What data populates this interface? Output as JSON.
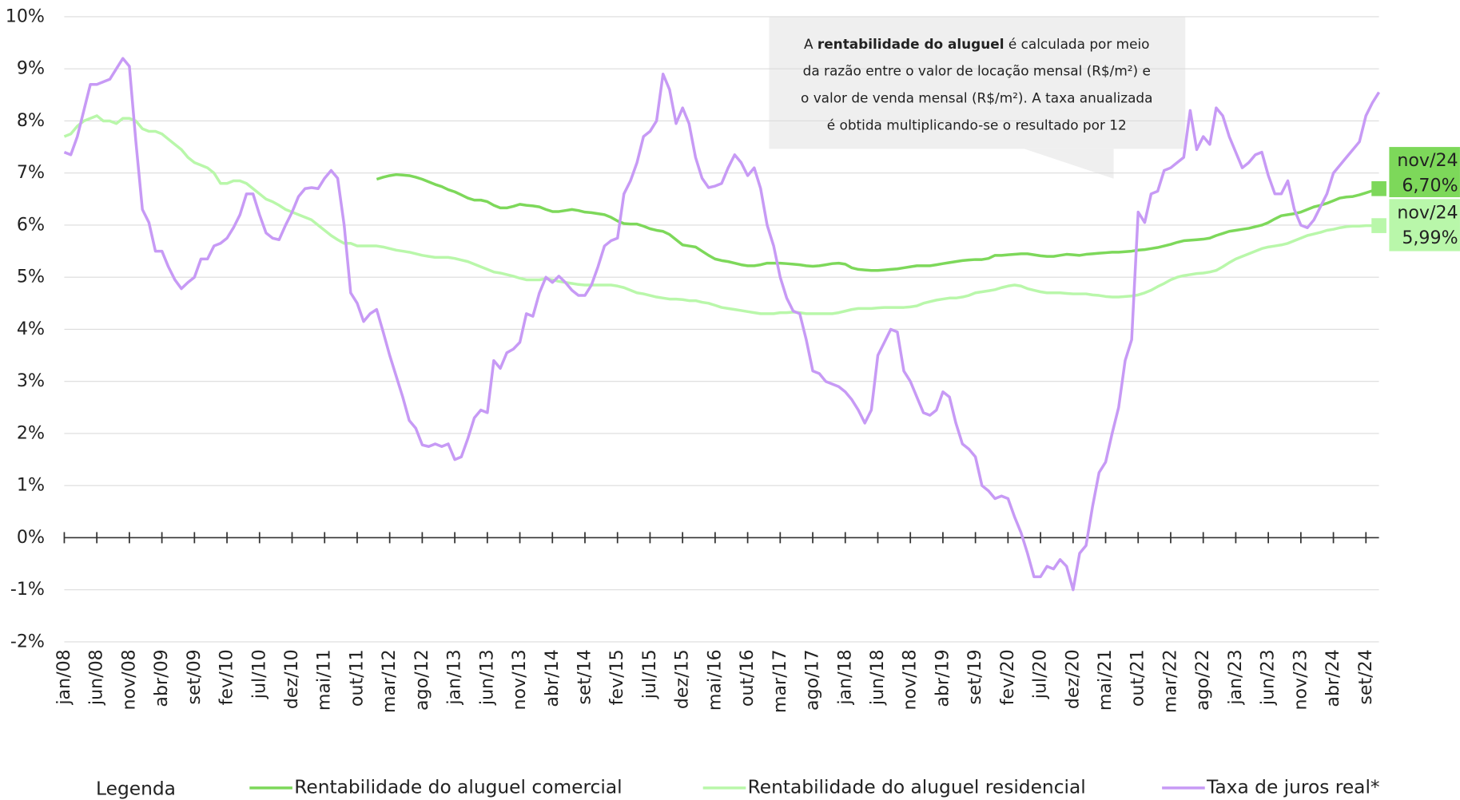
{
  "chart_data": {
    "type": "line",
    "ylim": [
      -2,
      10
    ],
    "yticks": [
      {
        "value": -2,
        "label": "-2%"
      },
      {
        "value": -1,
        "label": "-1%"
      },
      {
        "value": 0,
        "label": "0%"
      },
      {
        "value": 1,
        "label": "1%"
      },
      {
        "value": 2,
        "label": "2%"
      },
      {
        "value": 3,
        "label": "3%"
      },
      {
        "value": 4,
        "label": "4%"
      },
      {
        "value": 5,
        "label": "5%"
      },
      {
        "value": 6,
        "label": "6%"
      },
      {
        "value": 7,
        "label": "7%"
      },
      {
        "value": 8,
        "label": "8%"
      },
      {
        "value": 9,
        "label": "9%"
      },
      {
        "value": 10,
        "label": "10%"
      }
    ],
    "grid": true,
    "legend_title": "Legenda",
    "annotation": {
      "lines": [
        [
          "A ",
          "rentabilidade do aluguel",
          " é calculada por meio"
        ],
        [
          "da razão entre o valor de locação mensal (R$/m²) e"
        ],
        [
          "o valor de venda mensal (R$/m²).  A taxa anualizada"
        ],
        [
          "é obtida multiplicando-se  o resultado por 12"
        ]
      ]
    },
    "categories": [
      "jan/08",
      null,
      null,
      null,
      null,
      "jun/08",
      null,
      null,
      null,
      null,
      "nov/08",
      null,
      null,
      null,
      null,
      "abr/09",
      null,
      null,
      null,
      null,
      "set/09",
      null,
      null,
      null,
      null,
      "fev/10",
      null,
      null,
      null,
      null,
      "jul/10",
      null,
      null,
      null,
      null,
      "dez/10",
      null,
      null,
      null,
      null,
      "mai/11",
      null,
      null,
      null,
      null,
      "out/11",
      null,
      null,
      null,
      null,
      "mar/12",
      null,
      null,
      null,
      null,
      "ago/12",
      null,
      null,
      null,
      null,
      "jan/13",
      null,
      null,
      null,
      null,
      "jun/13",
      null,
      null,
      null,
      null,
      "nov/13",
      null,
      null,
      null,
      null,
      "abr/14",
      null,
      null,
      null,
      null,
      "set/14",
      null,
      null,
      null,
      null,
      "fev/15",
      null,
      null,
      null,
      null,
      "jul/15",
      null,
      null,
      null,
      null,
      "dez/15",
      null,
      null,
      null,
      null,
      "mai/16",
      null,
      null,
      null,
      null,
      "out/16",
      null,
      null,
      null,
      null,
      "mar/17",
      null,
      null,
      null,
      null,
      "ago/17",
      null,
      null,
      null,
      null,
      "jan/18",
      null,
      null,
      null,
      null,
      "jun/18",
      null,
      null,
      null,
      null,
      "nov/18",
      null,
      null,
      null,
      null,
      "abr/19",
      null,
      null,
      null,
      null,
      "set/19",
      null,
      null,
      null,
      null,
      "fev/20",
      null,
      null,
      null,
      null,
      "jul/20",
      null,
      null,
      null,
      null,
      "dez/20",
      null,
      null,
      null,
      null,
      "mai/21",
      null,
      null,
      null,
      null,
      "out/21",
      null,
      null,
      null,
      null,
      "mar/22",
      null,
      null,
      null,
      null,
      "ago/22",
      null,
      null,
      null,
      null,
      "jan/23",
      null,
      null,
      null,
      null,
      "jun/23",
      null,
      null,
      null,
      null,
      "nov/23",
      null,
      null,
      null,
      null,
      "abr/24",
      null,
      null,
      null,
      null,
      "set/24",
      null,
      null
    ],
    "series": [
      {
        "name": "Rentabilidade do aluguel comercial",
        "color": "#7dd85a",
        "last_label": [
          "nov/24",
          "6,70%"
        ],
        "values": [
          null,
          null,
          null,
          null,
          null,
          null,
          null,
          null,
          null,
          null,
          null,
          null,
          null,
          null,
          null,
          null,
          null,
          null,
          null,
          null,
          null,
          null,
          null,
          null,
          null,
          null,
          null,
          null,
          null,
          null,
          null,
          null,
          null,
          null,
          null,
          null,
          null,
          null,
          null,
          null,
          null,
          null,
          null,
          null,
          null,
          null,
          null,
          null,
          6.88,
          6.92,
          6.95,
          6.97,
          6.96,
          6.95,
          6.92,
          6.88,
          6.83,
          6.78,
          6.74,
          6.68,
          6.64,
          6.58,
          6.52,
          6.48,
          6.48,
          6.45,
          6.38,
          6.33,
          6.33,
          6.36,
          6.4,
          6.38,
          6.37,
          6.35,
          6.3,
          6.26,
          6.26,
          6.28,
          6.3,
          6.28,
          6.25,
          6.24,
          6.22,
          6.2,
          6.15,
          6.08,
          6.03,
          6.02,
          6.02,
          5.98,
          5.93,
          5.9,
          5.88,
          5.82,
          5.72,
          5.62,
          5.6,
          5.58,
          5.5,
          5.42,
          5.35,
          5.32,
          5.3,
          5.27,
          5.24,
          5.22,
          5.22,
          5.24,
          5.27,
          5.27,
          5.27,
          5.26,
          5.25,
          5.24,
          5.22,
          5.21,
          5.22,
          5.24,
          5.26,
          5.27,
          5.25,
          5.18,
          5.15,
          5.14,
          5.13,
          5.13,
          5.14,
          5.15,
          5.16,
          5.18,
          5.2,
          5.22,
          5.22,
          5.22,
          5.24,
          5.26,
          5.28,
          5.3,
          5.32,
          5.33,
          5.34,
          5.34,
          5.36,
          5.42,
          5.42,
          5.43,
          5.44,
          5.45,
          5.45,
          5.43,
          5.41,
          5.4,
          5.4,
          5.42,
          5.44,
          5.43,
          5.42,
          5.44,
          5.45,
          5.46,
          5.47,
          5.48,
          5.48,
          5.49,
          5.5,
          5.52,
          5.53,
          5.55,
          5.57,
          5.6,
          5.63,
          5.67,
          5.7,
          5.71,
          5.72,
          5.73,
          5.75,
          5.8,
          5.84,
          5.88,
          5.9,
          5.92,
          5.94,
          5.97,
          6.0,
          6.05,
          6.12,
          6.18,
          6.2,
          6.22,
          6.25,
          6.3,
          6.35,
          6.38,
          6.42,
          6.47,
          6.52,
          6.54,
          6.55,
          6.58,
          6.62,
          6.66,
          6.7
        ]
      },
      {
        "name": "Rentabilidade do aluguel residencial",
        "color": "#b9f7aa",
        "last_label": [
          "nov/24",
          "5,99%"
        ],
        "values": [
          7.7,
          7.75,
          7.9,
          8.0,
          8.05,
          8.1,
          8.0,
          8.0,
          7.95,
          8.05,
          8.05,
          8.0,
          7.85,
          7.8,
          7.8,
          7.75,
          7.65,
          7.55,
          7.45,
          7.3,
          7.2,
          7.15,
          7.1,
          7.0,
          6.8,
          6.8,
          6.85,
          6.85,
          6.8,
          6.7,
          6.6,
          6.5,
          6.45,
          6.38,
          6.3,
          6.25,
          6.2,
          6.15,
          6.1,
          6.0,
          5.9,
          5.8,
          5.72,
          5.65,
          5.65,
          5.6,
          5.6,
          5.6,
          5.6,
          5.58,
          5.55,
          5.52,
          5.5,
          5.48,
          5.45,
          5.42,
          5.4,
          5.38,
          5.38,
          5.38,
          5.36,
          5.33,
          5.3,
          5.25,
          5.2,
          5.15,
          5.1,
          5.08,
          5.05,
          5.02,
          4.98,
          4.95,
          4.95,
          4.95,
          4.97,
          4.95,
          4.92,
          4.9,
          4.88,
          4.86,
          4.85,
          4.85,
          4.85,
          4.85,
          4.85,
          4.83,
          4.8,
          4.75,
          4.7,
          4.68,
          4.65,
          4.62,
          4.6,
          4.58,
          4.58,
          4.57,
          4.55,
          4.55,
          4.52,
          4.5,
          4.46,
          4.42,
          4.4,
          4.38,
          4.36,
          4.34,
          4.32,
          4.3,
          4.3,
          4.3,
          4.32,
          4.32,
          4.33,
          4.32,
          4.3,
          4.3,
          4.3,
          4.3,
          4.3,
          4.32,
          4.35,
          4.38,
          4.4,
          4.4,
          4.4,
          4.41,
          4.42,
          4.42,
          4.42,
          4.42,
          4.43,
          4.45,
          4.5,
          4.53,
          4.56,
          4.58,
          4.6,
          4.6,
          4.62,
          4.65,
          4.7,
          4.72,
          4.74,
          4.76,
          4.8,
          4.83,
          4.85,
          4.83,
          4.78,
          4.75,
          4.72,
          4.7,
          4.7,
          4.7,
          4.69,
          4.68,
          4.68,
          4.68,
          4.66,
          4.65,
          4.63,
          4.62,
          4.62,
          4.63,
          4.64,
          4.66,
          4.7,
          4.75,
          4.82,
          4.88,
          4.95,
          5.0,
          5.03,
          5.05,
          5.07,
          5.08,
          5.1,
          5.13,
          5.2,
          5.28,
          5.35,
          5.4,
          5.45,
          5.5,
          5.55,
          5.58,
          5.6,
          5.62,
          5.65,
          5.7,
          5.75,
          5.8,
          5.83,
          5.86,
          5.9,
          5.92,
          5.95,
          5.97,
          5.98,
          5.98,
          5.99,
          5.99,
          5.99
        ]
      },
      {
        "name": "Taxa de juros real*",
        "color": "#c79af5",
        "values": [
          7.4,
          7.35,
          7.7,
          8.2,
          8.7,
          8.7,
          8.75,
          8.8,
          9.0,
          9.2,
          9.05,
          7.6,
          6.3,
          6.05,
          5.5,
          5.5,
          5.2,
          4.95,
          4.78,
          4.9,
          5.0,
          5.35,
          5.35,
          5.6,
          5.65,
          5.75,
          5.95,
          6.2,
          6.6,
          6.6,
          6.2,
          5.85,
          5.75,
          5.72,
          6.0,
          6.25,
          6.55,
          6.7,
          6.72,
          6.7,
          6.9,
          7.05,
          6.9,
          6.0,
          4.7,
          4.5,
          4.15,
          4.3,
          4.38,
          3.95,
          3.5,
          3.1,
          2.7,
          2.25,
          2.1,
          1.78,
          1.75,
          1.8,
          1.75,
          1.8,
          1.5,
          1.55,
          1.9,
          2.3,
          2.45,
          2.4,
          3.4,
          3.25,
          3.55,
          3.62,
          3.75,
          4.3,
          4.25,
          4.7,
          5.0,
          4.9,
          5.02,
          4.9,
          4.75,
          4.65,
          4.65,
          4.85,
          5.2,
          5.6,
          5.7,
          5.75,
          6.6,
          6.85,
          7.2,
          7.7,
          7.8,
          8.0,
          8.9,
          8.6,
          7.95,
          8.25,
          7.95,
          7.3,
          6.9,
          6.72,
          6.75,
          6.8,
          7.1,
          7.35,
          7.2,
          6.95,
          7.1,
          6.7,
          6.0,
          5.6,
          5.0,
          4.6,
          4.35,
          4.3,
          3.8,
          3.2,
          3.15,
          3.0,
          2.95,
          2.9,
          2.8,
          2.65,
          2.45,
          2.2,
          2.45,
          3.5,
          3.75,
          4.0,
          3.95,
          3.2,
          3.0,
          2.7,
          2.4,
          2.35,
          2.45,
          2.8,
          2.7,
          2.2,
          1.8,
          1.7,
          1.55,
          1.0,
          0.9,
          0.75,
          0.8,
          0.75,
          0.4,
          0.1,
          -0.3,
          -0.75,
          -0.75,
          -0.55,
          -0.6,
          -0.42,
          -0.55,
          -1.0,
          -0.3,
          -0.15,
          0.6,
          1.25,
          1.45,
          2.0,
          2.5,
          3.4,
          3.8,
          6.25,
          6.05,
          6.6,
          6.65,
          7.05,
          7.1,
          7.2,
          7.3,
          8.2,
          7.45,
          7.7,
          7.55,
          8.25,
          8.1,
          7.7,
          7.4,
          7.1,
          7.2,
          7.35,
          7.4,
          6.95,
          6.6,
          6.6,
          6.85,
          6.3,
          6.0,
          5.95,
          6.1,
          6.35,
          6.6,
          7.0,
          7.15,
          7.3,
          7.45,
          7.6,
          8.1,
          8.35,
          8.55
        ]
      }
    ]
  }
}
